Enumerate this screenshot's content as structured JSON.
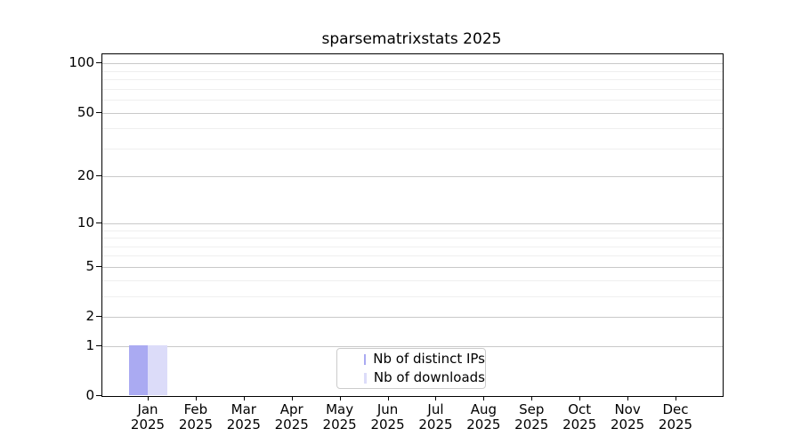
{
  "chart_data": {
    "type": "bar",
    "title": "sparsematrixstats 2025",
    "year": "2025",
    "categories": [
      "Jan",
      "Feb",
      "Mar",
      "Apr",
      "May",
      "Jun",
      "Jul",
      "Aug",
      "Sep",
      "Oct",
      "Nov",
      "Dec"
    ],
    "series": [
      {
        "name": "Nb of distinct IPs",
        "color": "#aaaaf2",
        "values": [
          1,
          0,
          0,
          0,
          0,
          0,
          0,
          0,
          0,
          0,
          0,
          0
        ]
      },
      {
        "name": "Nb of downloads",
        "color": "#dcdcf9",
        "values": [
          1,
          0,
          0,
          0,
          0,
          0,
          0,
          0,
          0,
          0,
          0,
          0
        ]
      }
    ],
    "xlabel": "",
    "ylabel": "",
    "y_axis": {
      "scale": "log10(1+x)",
      "min": 0,
      "max": 113.6,
      "ticks": [
        0,
        1,
        2,
        5,
        10,
        20,
        50,
        100
      ],
      "minor_ticks": [
        3,
        4,
        6,
        7,
        8,
        9,
        30,
        40,
        60,
        70,
        80,
        90
      ]
    },
    "grid": "horizontal",
    "legend_position": "bottom-center"
  }
}
